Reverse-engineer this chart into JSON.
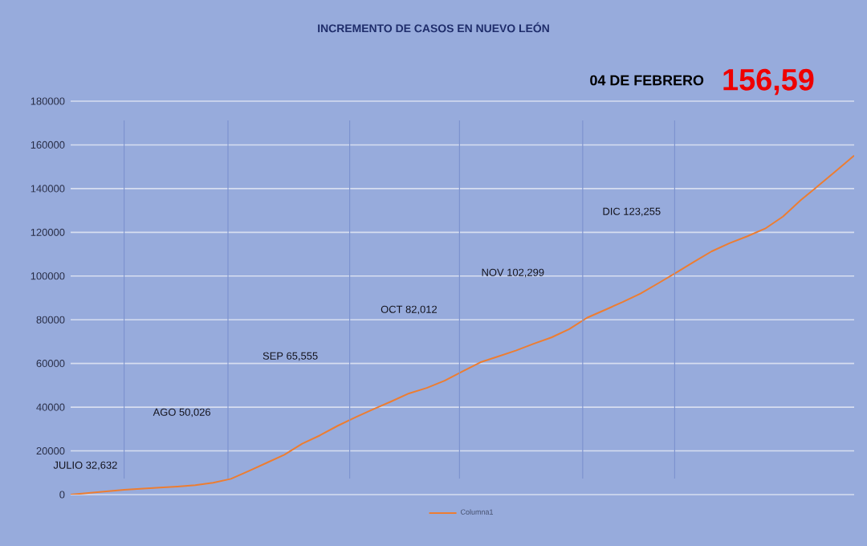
{
  "chart_data": {
    "type": "line",
    "title": "INCREMENTO DE CASOS EN NUEVO LEÓN",
    "categories": [
      null,
      null,
      null,
      null,
      null,
      null,
      null,
      null,
      null,
      null,
      null,
      null,
      null,
      null,
      null,
      null,
      null,
      null,
      null,
      null,
      null,
      null,
      null,
      null,
      null,
      null,
      null,
      null,
      null,
      null,
      null,
      null,
      null,
      null,
      null,
      null,
      null,
      null,
      null,
      null,
      null,
      null,
      null,
      null,
      null
    ],
    "series": [
      {
        "name": "Columna1",
        "color": "#ed7d31",
        "values": [
          0,
          700,
          1500,
          2200,
          2700,
          3200,
          3700,
          4300,
          5400,
          7200,
          10800,
          14500,
          18200,
          23300,
          27100,
          31500,
          35400,
          39100,
          42600,
          46300,
          48800,
          52100,
          56300,
          60500,
          63200,
          65900,
          69000,
          71900,
          75700,
          80900,
          84500,
          88100,
          92000,
          96700,
          101500,
          106500,
          111300,
          115000,
          118200,
          121700,
          127200,
          134700,
          141400,
          148200,
          155100
        ]
      }
    ],
    "ylim": [
      0,
      180000
    ],
    "yticks": [
      0,
      20000,
      40000,
      60000,
      80000,
      100000,
      120000,
      140000,
      160000,
      180000
    ],
    "tick_labels": "y",
    "grid": true,
    "legend": "bottom",
    "marker": "none",
    "line_style": "solid",
    "annotations": [
      "JULIO 32,632",
      "AGO 50,026",
      "SEP 65,555",
      "OCT 82,012",
      "NOV 102,299",
      "DIC 123,255",
      "04 DE FEBRERO",
      "156,59"
    ]
  }
}
